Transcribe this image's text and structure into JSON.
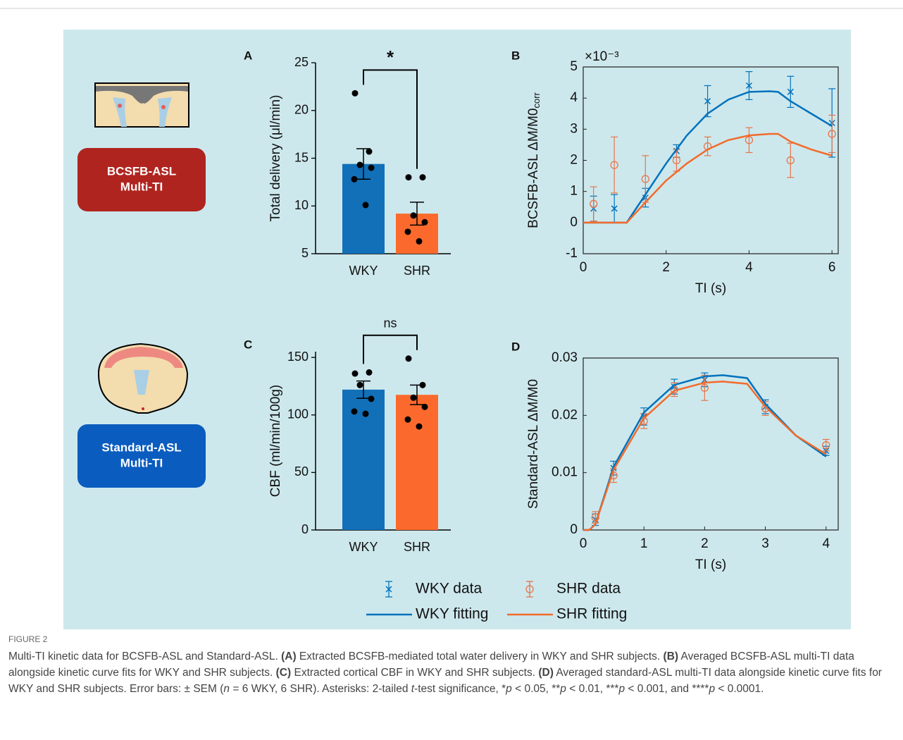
{
  "chart_data": [
    {
      "type": "bar",
      "label": "A",
      "categories": [
        "WKY",
        "SHR"
      ],
      "values": [
        14.4,
        9.2
      ],
      "errors": [
        1.6,
        1.2
      ],
      "colors": [
        "#1170b8",
        "#fb6a2c"
      ],
      "points": [
        [
          21.8,
          15.7,
          14.3,
          14.0,
          12.8,
          10.1
        ],
        [
          13.0,
          13.0,
          9.0,
          8.3,
          7.3,
          6.3
        ]
      ],
      "ylabel": "Total delivery (μl/min)",
      "ylim": [
        5,
        25
      ],
      "yticks": [
        5,
        10,
        15,
        20,
        25
      ],
      "annotation": "*"
    },
    {
      "type": "line",
      "label": "B",
      "multiplier": "×10⁻³",
      "ylabel": "BCSFB-ASL ΔM/M0",
      "ylabel_subscript": "corr",
      "xlabel": "TI (s)",
      "xlim": [
        0,
        6.15
      ],
      "xticks": [
        0,
        2,
        4,
        6
      ],
      "ylim": [
        -1,
        5
      ],
      "yticks": [
        -1,
        0,
        1,
        2,
        3,
        4,
        5
      ],
      "legend": "bottom",
      "series": [
        {
          "name": "WKY data",
          "type": "errorbar",
          "marker": "x",
          "color": "#0072bd",
          "x": [
            0.25,
            0.75,
            1.5,
            2.25,
            3,
            4,
            5,
            6
          ],
          "values": [
            0.45,
            0.45,
            0.8,
            2.3,
            3.9,
            4.4,
            4.2,
            3.2
          ],
          "errors": [
            0.4,
            0.45,
            0.3,
            0.2,
            0.5,
            0.45,
            0.5,
            1.1
          ]
        },
        {
          "name": "SHR data",
          "type": "errorbar",
          "marker": "o",
          "color": "#e8744a",
          "x": [
            0.25,
            0.75,
            1.5,
            2.25,
            3,
            4,
            5,
            6
          ],
          "values": [
            0.6,
            1.85,
            1.4,
            2.0,
            2.45,
            2.65,
            2.0,
            2.85
          ],
          "errors": [
            0.55,
            0.9,
            0.75,
            0.35,
            0.3,
            0.4,
            0.55,
            0.6
          ]
        },
        {
          "name": "WKY fitting",
          "type": "line",
          "color": "#0072bd",
          "x": [
            0,
            1.05,
            1.5,
            2,
            2.5,
            3,
            3.5,
            4,
            4.5,
            4.7,
            5,
            5.5,
            6
          ],
          "values": [
            0,
            0,
            0.9,
            1.9,
            2.8,
            3.5,
            3.95,
            4.2,
            4.22,
            4.2,
            3.9,
            3.5,
            3.1
          ]
        },
        {
          "name": "SHR fitting",
          "type": "line",
          "color": "#f26b2c",
          "x": [
            0,
            1.05,
            1.5,
            2,
            2.5,
            3,
            3.5,
            4,
            4.5,
            4.7,
            5,
            5.5,
            6
          ],
          "values": [
            0,
            0,
            0.65,
            1.35,
            1.9,
            2.35,
            2.65,
            2.8,
            2.85,
            2.85,
            2.6,
            2.35,
            2.15
          ]
        }
      ]
    },
    {
      "type": "bar",
      "label": "C",
      "categories": [
        "WKY",
        "SHR"
      ],
      "values": [
        122,
        117.5
      ],
      "errors": [
        7.5,
        8.5
      ],
      "colors": [
        "#1170b8",
        "#fb6a2c"
      ],
      "points": [
        [
          136,
          137,
          126,
          114,
          103,
          101
        ],
        [
          149,
          126,
          115,
          107,
          96,
          90
        ]
      ],
      "ylabel": "CBF (ml/min/100g)",
      "ylim": [
        0,
        155
      ],
      "yticks": [
        0,
        50,
        100,
        150
      ],
      "annotation": "ns"
    },
    {
      "type": "line",
      "label": "D",
      "ylabel": "Standard-ASL ΔM/M0",
      "xlabel": "TI (s)",
      "xlim": [
        0,
        4.2
      ],
      "xticks": [
        0,
        1,
        2,
        3,
        4
      ],
      "ylim": [
        0,
        0.03
      ],
      "yticks": [
        0,
        0.01,
        0.02,
        0.03
      ],
      "series": [
        {
          "type": "errorbar",
          "marker": "x",
          "color": "#0072bd",
          "x": [
            0.2,
            0.5,
            1,
            1.5,
            2,
            3,
            4
          ],
          "values": [
            0.0018,
            0.0108,
            0.0198,
            0.025,
            0.0262,
            0.0215,
            0.0138
          ],
          "errors": [
            0.001,
            0.0012,
            0.0015,
            0.0013,
            0.0012,
            0.0012,
            0.0008
          ]
        },
        {
          "type": "errorbar",
          "marker": "o",
          "color": "#e8744a",
          "x": [
            0.2,
            0.5,
            1,
            1.5,
            2,
            3,
            4
          ],
          "values": [
            0.0022,
            0.0095,
            0.019,
            0.0245,
            0.0248,
            0.0212,
            0.0148
          ],
          "errors": [
            0.001,
            0.0012,
            0.0013,
            0.0012,
            0.0022,
            0.0012,
            0.001
          ]
        },
        {
          "type": "line",
          "color": "#0072bd",
          "x": [
            0,
            0.1,
            0.2,
            0.5,
            1,
            1.5,
            2,
            2.3,
            2.7,
            3,
            3.5,
            4
          ],
          "values": [
            0,
            0,
            0.001,
            0.011,
            0.0205,
            0.0253,
            0.0268,
            0.027,
            0.0265,
            0.022,
            0.0165,
            0.0128
          ]
        },
        {
          "type": "line",
          "color": "#f26b2c",
          "x": [
            0,
            0.1,
            0.2,
            0.5,
            1,
            1.5,
            2,
            2.3,
            2.7,
            3,
            3.5,
            4
          ],
          "values": [
            0,
            0,
            0.001,
            0.0105,
            0.0195,
            0.0243,
            0.0257,
            0.0259,
            0.0255,
            0.0215,
            0.0165,
            0.0132
          ]
        }
      ]
    }
  ],
  "icons": [
    {
      "label": [
        "BCSFB-ASL",
        "Multi-TI"
      ],
      "color": "#b0241f"
    },
    {
      "label": [
        "Standard-ASL",
        "Multi-TI"
      ],
      "color": "#0a5cbf"
    }
  ],
  "figure_label": "FIGURE 2",
  "caption": [
    {
      "text": "Multi-TI kinetic data for BCSFB-ASL and Standard-ASL. "
    },
    {
      "text": "(A)",
      "style": "bold"
    },
    {
      "text": " Extracted BCSFB-mediated total water delivery in WKY and SHR subjects. "
    },
    {
      "text": "(B)",
      "style": "bold"
    },
    {
      "text": " Averaged BCSFB-ASL multi-TI data alongside kinetic curve fits for WKY and SHR subjects. "
    },
    {
      "text": "(C)",
      "style": "bold"
    },
    {
      "text": " Extracted cortical CBF in WKY and SHR subjects. "
    },
    {
      "text": "(D)",
      "style": "bold"
    },
    {
      "text": " Averaged standard-ASL multi-TI data alongside kinetic curve fits for WKY and SHR subjects. Error bars: ± SEM ("
    },
    {
      "text": "n",
      "style": "italic"
    },
    {
      "text": " = 6 WKY, 6 SHR). Asterisks: 2-tailed "
    },
    {
      "text": "t",
      "style": "italic"
    },
    {
      "text": "-test significance, *"
    },
    {
      "text": "p",
      "style": "italic"
    },
    {
      "text": " < 0.05, **"
    },
    {
      "text": "p",
      "style": "italic"
    },
    {
      "text": " < 0.01, ***"
    },
    {
      "text": "p",
      "style": "italic"
    },
    {
      "text": " < 0.001, and ****"
    },
    {
      "text": "p",
      "style": "italic"
    },
    {
      "text": " < 0.0001."
    }
  ]
}
